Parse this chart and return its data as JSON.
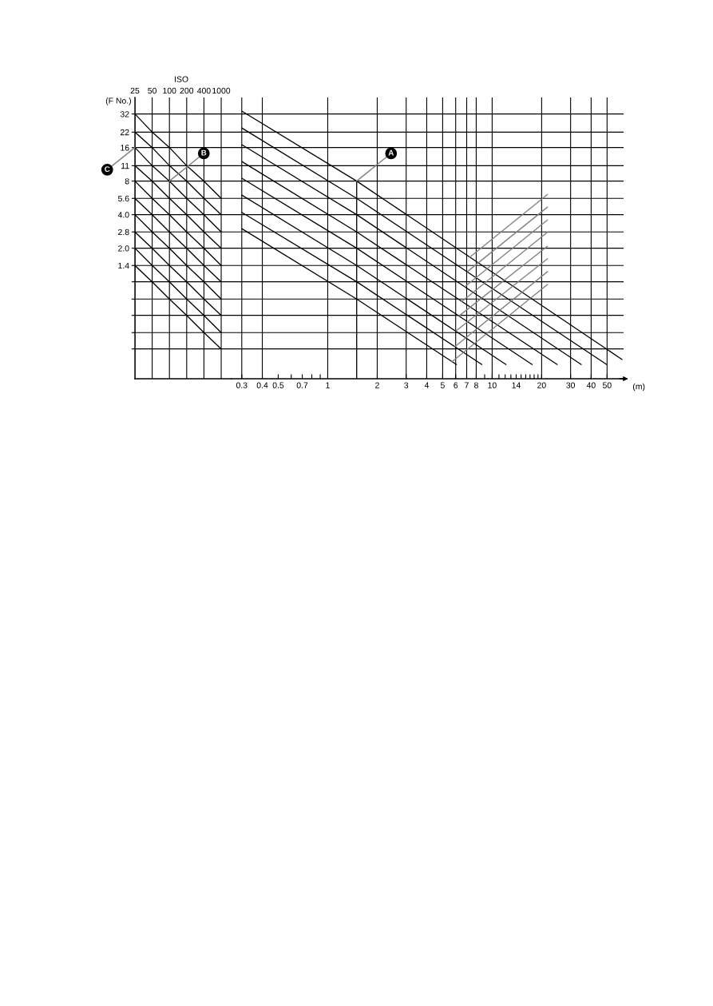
{
  "chart_data": [
    {
      "type": "line",
      "xlabel": "ISO",
      "ylabel": "(F No.)",
      "categories": [
        "25",
        "50",
        "100",
        "200",
        "400",
        "1000"
      ],
      "series": [
        {
          "color": "#000000",
          "values": [
            32,
            22,
            16,
            11,
            8,
            5.6
          ]
        },
        {
          "color": "#000000",
          "values": [
            22,
            16,
            11,
            8,
            5.6,
            4
          ]
        },
        {
          "color": "#000000",
          "values": [
            16,
            11,
            8,
            5.6,
            4,
            2.8
          ]
        },
        {
          "color": "#000000",
          "values": [
            11,
            8,
            5.6,
            4,
            2.8,
            2
          ]
        },
        {
          "color": "#000000",
          "values": [
            8,
            5.6,
            4,
            2.8,
            2,
            1.4
          ]
        },
        {
          "color": "#000000",
          "values": [
            5.6,
            4,
            2.8,
            2,
            1.4,
            1
          ]
        },
        {
          "color": "#000000",
          "values": [
            4,
            2.8,
            2,
            1.4,
            1,
            0.7
          ]
        },
        {
          "color": "#000000",
          "values": [
            2.8,
            2,
            1.4,
            1,
            0.7,
            0.5
          ]
        },
        {
          "color": "#000000",
          "values": [
            2,
            1.4,
            1,
            0.7,
            0.5,
            0.35
          ]
        },
        {
          "color": "#000000",
          "values": [
            1.4,
            1,
            0.7,
            0.5,
            0.35,
            0.25
          ]
        }
      ],
      "ylim": [
        0.135,
        45
      ],
      "yticks": [
        32,
        22,
        16,
        11,
        8,
        5.6,
        {
          "value": 4,
          "label": "4.0"
        },
        2.8,
        {
          "value": 2,
          "label": "2.0"
        },
        1.4,
        {
          "value": 1,
          "label": null
        },
        {
          "value": 0.7,
          "label": null
        },
        {
          "value": 0.5,
          "label": null
        },
        {
          "value": 0.35,
          "label": null
        },
        {
          "value": 0.25,
          "label": null
        }
      ],
      "log": "y",
      "grid": true,
      "annotations": [
        {
          "text": "B",
          "x": "100",
          "y": 8
        },
        {
          "text": "C",
          "x": "25",
          "y": 16
        }
      ]
    },
    {
      "type": "line",
      "xlabel": "(m)",
      "series": [
        {
          "color": "#000000",
          "x": [
            0.3,
            1.5,
            62
          ],
          "values": [
            34,
            8,
            0.2
          ]
        },
        {
          "color": "#000000",
          "x": [
            0.3,
            1.5,
            50
          ],
          "values": [
            24,
            5.6,
            0.18
          ]
        },
        {
          "color": "#000000",
          "x": [
            0.3,
            1.5,
            35
          ],
          "values": [
            17,
            4,
            0.18
          ]
        },
        {
          "color": "#000000",
          "x": [
            0.3,
            1.5,
            25
          ],
          "values": [
            12,
            2.8,
            0.18
          ]
        },
        {
          "color": "#000000",
          "x": [
            0.3,
            1.5,
            17.6
          ],
          "values": [
            8.5,
            2,
            0.18
          ]
        },
        {
          "color": "#000000",
          "x": [
            0.3,
            1.5,
            12.2
          ],
          "values": [
            6,
            1.4,
            0.18
          ]
        },
        {
          "color": "#000000",
          "x": [
            0.3,
            1.5,
            8.7
          ],
          "values": [
            4.2,
            1,
            0.18
          ]
        },
        {
          "color": "#000000",
          "x": [
            0.3,
            1.5,
            6.1
          ],
          "values": [
            3,
            0.7,
            0.18
          ]
        },
        {
          "color": "#808080",
          "x": [
            7.3,
            21.8
          ],
          "values": [
            1.66,
            6.1
          ]
        },
        {
          "color": "#808080",
          "x": [
            7.05,
            21.8
          ],
          "values": [
            1.23,
            4.7
          ]
        },
        {
          "color": "#808080",
          "x": [
            6.8,
            21.8
          ],
          "values": [
            0.9,
            3.6
          ]
        },
        {
          "color": "#808080",
          "x": [
            6.5,
            21.8
          ],
          "values": [
            0.66,
            2.8
          ]
        },
        {
          "color": "#808080",
          "x": [
            6.25,
            21.8
          ],
          "values": [
            0.49,
            2.1
          ]
        },
        {
          "color": "#808080",
          "x": [
            6.0,
            21.8
          ],
          "values": [
            0.36,
            1.62
          ]
        },
        {
          "color": "#808080",
          "x": [
            5.9,
            21.8
          ],
          "values": [
            0.26,
            1.24
          ]
        },
        {
          "color": "#808080",
          "x": [
            5.65,
            21.8
          ],
          "values": [
            0.19,
            0.95
          ]
        },
        {
          "color": "#000000",
          "x": [
            1.5,
            1.5
          ],
          "values": [
            8,
            0.135
          ]
        }
      ],
      "xlim": [
        0.26,
        63
      ],
      "xticks": [
        0.3,
        0.4,
        0.5,
        {
          "value": 0.6,
          "label": null
        },
        0.7,
        {
          "value": 0.8,
          "label": null
        },
        {
          "value": 0.9,
          "label": null
        },
        1,
        2,
        3,
        4,
        5,
        6,
        7,
        8,
        {
          "value": 9,
          "label": null
        },
        10,
        {
          "value": 11,
          "label": null
        },
        {
          "value": 12,
          "label": null
        },
        {
          "value": 13,
          "label": null
        },
        14,
        {
          "value": 15,
          "label": null
        },
        {
          "value": 16,
          "label": null
        },
        {
          "value": 17,
          "label": null
        },
        {
          "value": 18,
          "label": null
        },
        {
          "value": 19,
          "label": null
        },
        20,
        30,
        40,
        50
      ],
      "ylim": [
        0.135,
        45
      ],
      "yticks": [
        32,
        22,
        16,
        11,
        8,
        5.6,
        4,
        2.8,
        2,
        1.4,
        1,
        0.7,
        0.5,
        0.35,
        0.25
      ],
      "log": "xy",
      "grid": "y",
      "tick_labels": "x",
      "ref_lines": [
        {
          "axis": "x",
          "value": 0.3,
          "color": "#000000"
        },
        {
          "axis": "x",
          "value": 0.4,
          "color": "#000000"
        },
        {
          "axis": "x",
          "value": 1,
          "color": "#000000"
        },
        {
          "axis": "x",
          "value": 2,
          "color": "#000000"
        },
        {
          "axis": "x",
          "value": 3,
          "color": "#000000"
        },
        {
          "axis": "x",
          "value": 4,
          "color": "#000000"
        },
        {
          "axis": "x",
          "value": 5,
          "color": "#000000"
        },
        {
          "axis": "x",
          "value": 6,
          "color": "#000000"
        },
        {
          "axis": "x",
          "value": 7,
          "color": "#000000"
        },
        {
          "axis": "x",
          "value": 8,
          "color": "#000000"
        },
        {
          "axis": "x",
          "value": 10,
          "color": "#000000"
        },
        {
          "axis": "x",
          "value": 20,
          "color": "#000000"
        },
        {
          "axis": "x",
          "value": 30,
          "color": "#000000"
        },
        {
          "axis": "x",
          "value": 40,
          "color": "#000000"
        },
        {
          "axis": "x",
          "value": 50,
          "color": "#000000"
        }
      ],
      "annotations": [
        {
          "text": "A",
          "x": 1.5,
          "y": 8
        }
      ]
    }
  ]
}
